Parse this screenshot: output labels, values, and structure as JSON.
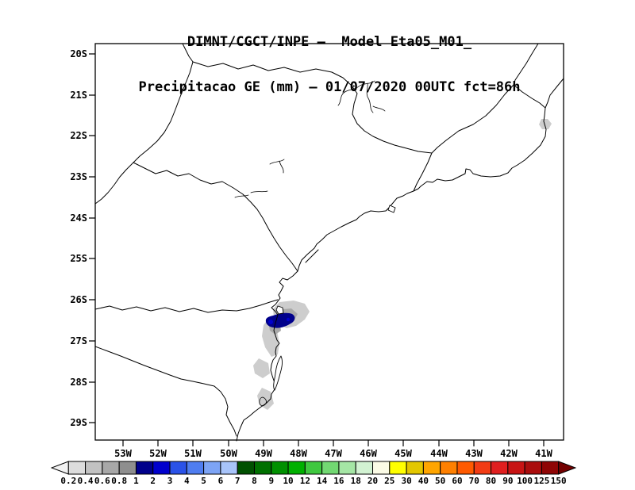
{
  "header": {
    "title_line1": "DIMNT/CGCT/INPE –  Model Eta05_M01_",
    "title_line2": "Precipitacao GE (mm) – 01/07/2020 00UTC fct=86h"
  },
  "map": {
    "lat_labels": [
      "20S",
      "21S",
      "22S",
      "23S",
      "24S",
      "25S",
      "26S",
      "27S",
      "28S",
      "29S"
    ],
    "lon_labels": [
      "53W",
      "52W",
      "51W",
      "50W",
      "49W",
      "48W",
      "47W",
      "46W",
      "45W",
      "44W",
      "43W",
      "42W",
      "41W"
    ],
    "precipitation": {
      "main_shaded_area": "coastal Santa Catarina near 26S-27.5S, 48W-49.5W",
      "light_shading_range_mm": "0.2 - 1",
      "dark_core_range_mm": "1 - 2",
      "secondary_spot": "small shaded speck at right edge near 21.5S"
    }
  },
  "colorbar": {
    "unit": "mm",
    "labels": [
      "0.2",
      "0.4",
      "0.6",
      "0.8",
      "1",
      "2",
      "3",
      "4",
      "5",
      "6",
      "7",
      "8",
      "9",
      "10",
      "12",
      "14",
      "16",
      "18",
      "20",
      "25",
      "30",
      "40",
      "50",
      "60",
      "70",
      "80",
      "90",
      "100",
      "125",
      "150"
    ],
    "colors": [
      "#f2f2f2",
      "#dcdcdc",
      "#c2c2c2",
      "#a8a8a8",
      "#8e8e8e",
      "#00008b",
      "#0000cd",
      "#2a52e8",
      "#4f7df0",
      "#7da4f5",
      "#a8c4fa",
      "#005000",
      "#007000",
      "#009000",
      "#00b000",
      "#3fc83f",
      "#72d872",
      "#a5e6a5",
      "#d2f2d2",
      "#fbfbe6",
      "#ffff00",
      "#e3c700",
      "#ffa500",
      "#ff8000",
      "#ff5a00",
      "#f23c14",
      "#e01f1f",
      "#c81414",
      "#aa0d0d",
      "#8f0505",
      "#730000"
    ]
  }
}
